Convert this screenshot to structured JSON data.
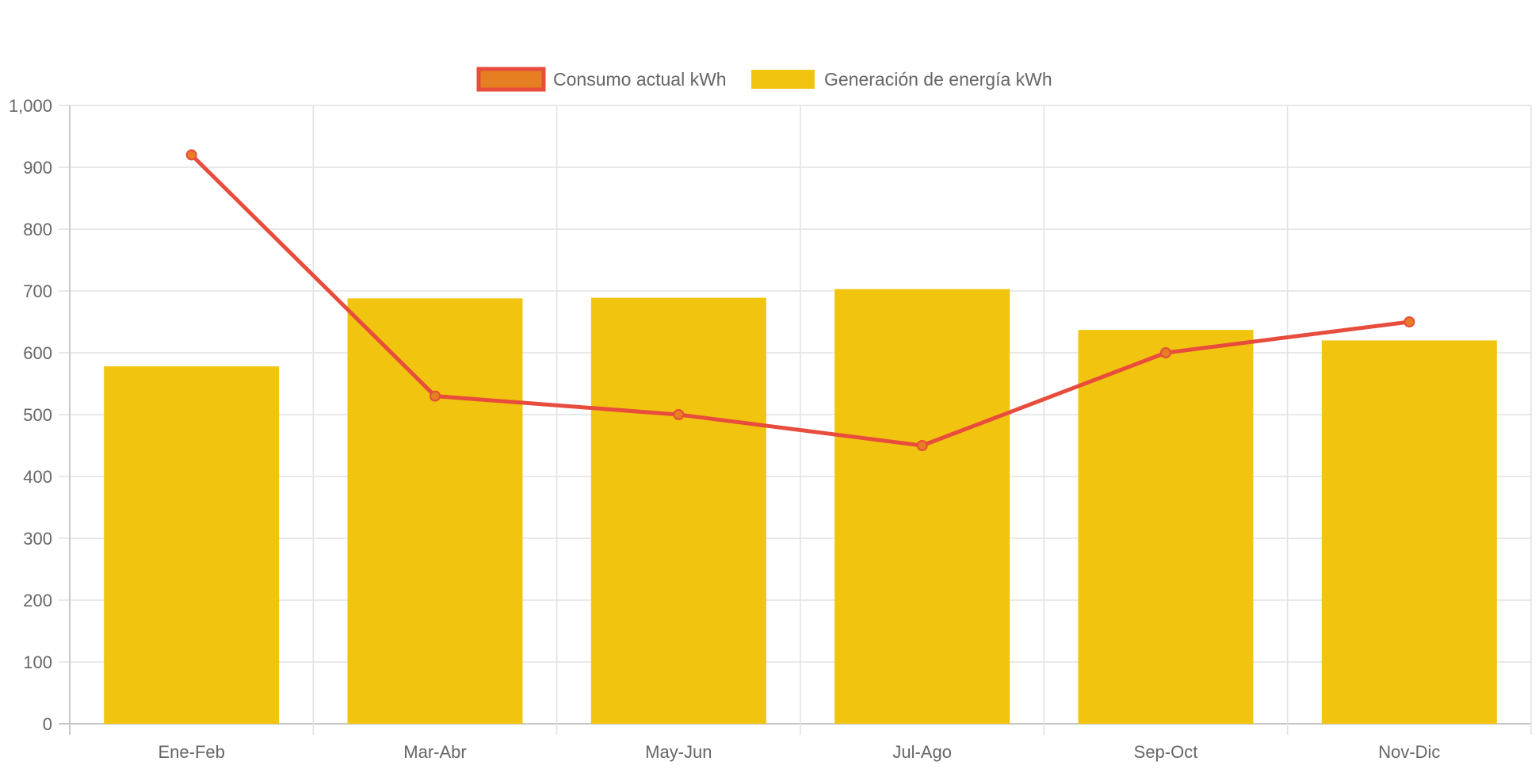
{
  "chart_data": {
    "type": "bar",
    "categories": [
      "Ene-Feb",
      "Mar-Abr",
      "May-Jun",
      "Jul-Ago",
      "Sep-Oct",
      "Nov-Dic"
    ],
    "series": [
      {
        "name": "Consumo actual kWh",
        "type": "line",
        "values": [
          920,
          530,
          500,
          450,
          600,
          650
        ],
        "color": "#e74c3c",
        "point_color": "#e67e22"
      },
      {
        "name": "Generación de energía kWh",
        "type": "bar",
        "values": [
          578,
          688,
          689,
          703,
          637,
          620
        ],
        "color": "#f1c40f"
      }
    ],
    "ylim": [
      0,
      1000
    ],
    "yticks": [
      "0",
      "100",
      "200",
      "300",
      "400",
      "500",
      "600",
      "700",
      "800",
      "900",
      "1,000"
    ],
    "grid": true,
    "legend_position": "top-center"
  }
}
